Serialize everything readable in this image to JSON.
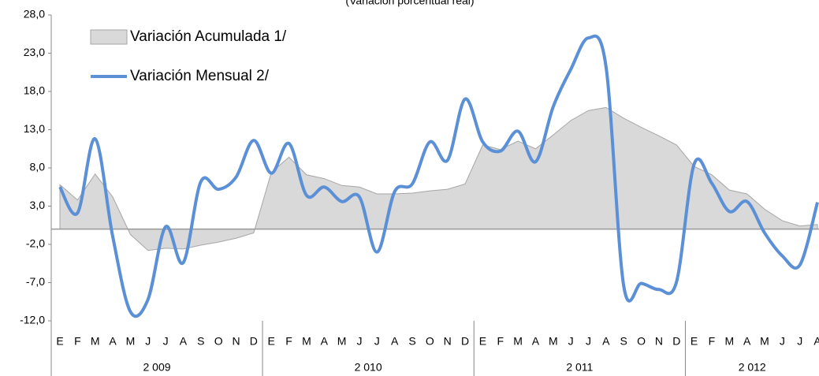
{
  "chart_data": {
    "type": "line",
    "subtitle": "(Variación porcentual real)",
    "categories": [
      "E",
      "F",
      "M",
      "A",
      "M",
      "J",
      "J",
      "A",
      "S",
      "O",
      "N",
      "D",
      "E",
      "F",
      "M",
      "A",
      "M",
      "J",
      "J",
      "A",
      "S",
      "O",
      "N",
      "D",
      "E",
      "F",
      "M",
      "A",
      "M",
      "J",
      "J",
      "A",
      "S",
      "O",
      "N",
      "D",
      "E",
      "F",
      "M",
      "A",
      "M",
      "J",
      "J",
      "A"
    ],
    "category_groups": [
      {
        "label": "2 009",
        "size": 12
      },
      {
        "label": "2 010",
        "size": 12
      },
      {
        "label": "2 011",
        "size": 12
      },
      {
        "label": "2 012",
        "size": 8
      }
    ],
    "series": [
      {
        "name": "Variación Acumulada 1/",
        "kind": "area",
        "color": "#d9d9d9",
        "edge_color": "#a6a6a6",
        "values": [
          5.8,
          3.8,
          7.2,
          4.2,
          -0.7,
          -2.8,
          -2.5,
          -2.6,
          -2.1,
          -1.7,
          -1.2,
          -0.5,
          7.4,
          9.4,
          7.1,
          6.6,
          5.7,
          5.5,
          4.6,
          4.6,
          4.7,
          5.0,
          5.2,
          5.9,
          11.0,
          10.4,
          11.5,
          10.5,
          12.3,
          14.2,
          15.5,
          15.9,
          14.5,
          13.3,
          12.2,
          11.0,
          8.2,
          7.1,
          5.1,
          4.6,
          2.6,
          1.1,
          0.4,
          0.6
        ]
      },
      {
        "name": "Variación Mensual 2/",
        "kind": "line",
        "color": "#5b8fd6",
        "values": [
          5.5,
          2.1,
          11.8,
          -1.0,
          -10.8,
          -9.2,
          0.3,
          -4.4,
          6.2,
          5.2,
          6.8,
          11.6,
          7.3,
          11.2,
          4.4,
          5.5,
          3.6,
          4.2,
          -3.0,
          4.9,
          5.9,
          11.4,
          9.0,
          17.0,
          11.4,
          10.2,
          12.8,
          8.8,
          16.0,
          20.9,
          25.0,
          21.2,
          -7.4,
          -7.1,
          -7.9,
          -6.9,
          8.5,
          6.0,
          2.3,
          3.6,
          -0.5,
          -3.5,
          -4.7,
          3.5
        ]
      }
    ],
    "ylim": [
      -12,
      28
    ],
    "yticks": [
      {
        "value": 28,
        "label": "28,0"
      },
      {
        "value": 23,
        "label": "23,0"
      },
      {
        "value": 18,
        "label": "18,0"
      },
      {
        "value": 13,
        "label": "13,0"
      },
      {
        "value": 8,
        "label": "8,0"
      },
      {
        "value": 3,
        "label": "3,0"
      },
      {
        "value": -2,
        "label": "-2,0"
      },
      {
        "value": -7,
        "label": "-7,0"
      },
      {
        "value": -12,
        "label": "-12,0"
      }
    ],
    "grid": false
  }
}
